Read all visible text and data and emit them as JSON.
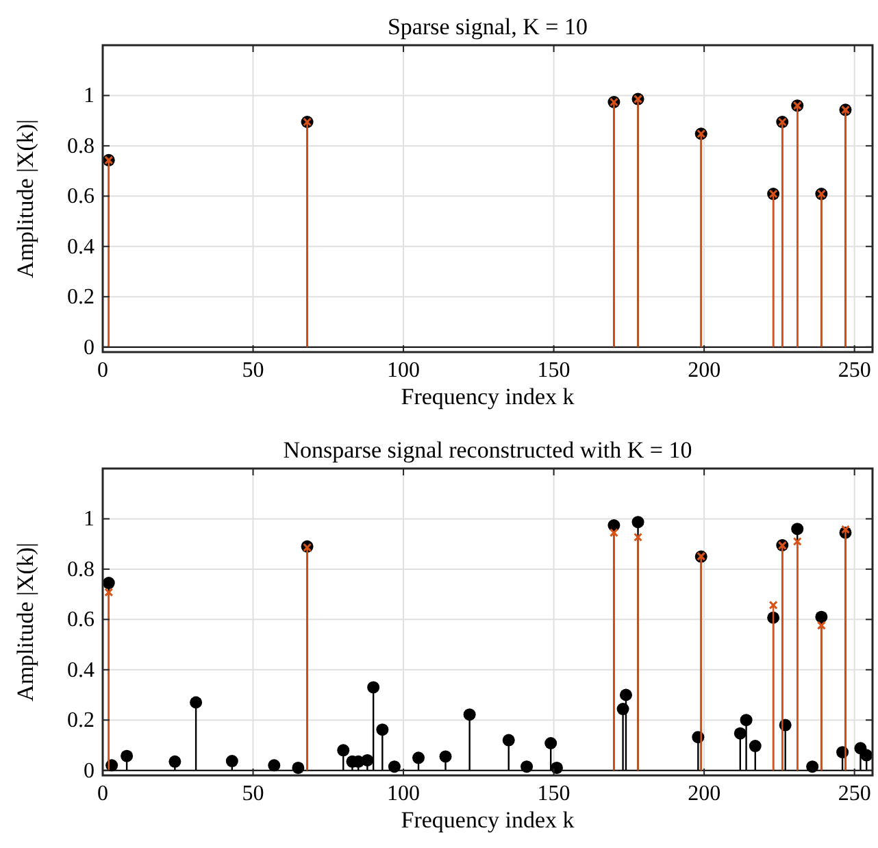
{
  "chart_data": [
    {
      "type": "lollipop",
      "title": "Sparse signal, K = 10",
      "xlabel": "Frequency index k",
      "ylabel": "Amplitude |X(k)|",
      "xlim": [
        0,
        256
      ],
      "ylim": [
        -0.02,
        1.2
      ],
      "xticks": [
        0,
        50,
        100,
        150,
        200,
        250
      ],
      "yticks": [
        0,
        0.2,
        0.4,
        0.6,
        0.8,
        1
      ],
      "grid": true,
      "series": [
        {
          "color": "#000000",
          "marker": "circle",
          "x": [
            2,
            68,
            170,
            178,
            199,
            223,
            226,
            231,
            239,
            247
          ],
          "values": [
            0.743,
            0.895,
            0.974,
            0.986,
            0.848,
            0.609,
            0.895,
            0.96,
            0.609,
            0.943
          ]
        },
        {
          "color": "#d95319",
          "marker": "cross",
          "x": [
            2,
            68,
            170,
            178,
            199,
            223,
            226,
            231,
            239,
            247
          ],
          "values": [
            0.743,
            0.895,
            0.974,
            0.986,
            0.848,
            0.609,
            0.895,
            0.96,
            0.609,
            0.943
          ]
        }
      ]
    },
    {
      "type": "lollipop",
      "title": "Nonsparse signal reconstructed with K = 10",
      "xlabel": "Frequency index k",
      "ylabel": "Amplitude |X(k)|",
      "xlim": [
        0,
        256
      ],
      "ylim": [
        -0.02,
        1.2
      ],
      "xticks": [
        0,
        50,
        100,
        150,
        200,
        250
      ],
      "yticks": [
        0,
        0.2,
        0.4,
        0.6,
        0.8,
        1
      ],
      "grid": true,
      "series": [
        {
          "color": "#000000",
          "marker": "circle",
          "x": [
            2,
            3,
            8,
            24,
            31,
            43,
            57,
            65,
            68,
            80,
            83,
            85,
            88,
            90,
            93,
            97,
            105,
            114,
            122,
            135,
            141,
            149,
            151,
            170,
            173,
            174,
            178,
            198,
            199,
            212,
            214,
            217,
            223,
            226,
            227,
            231,
            236,
            239,
            246,
            247,
            252,
            254
          ],
          "values": [
            0.745,
            0.02,
            0.057,
            0.035,
            0.27,
            0.037,
            0.02,
            0.01,
            0.89,
            0.08,
            0.035,
            0.035,
            0.04,
            0.33,
            0.162,
            0.015,
            0.05,
            0.055,
            0.222,
            0.12,
            0.015,
            0.108,
            0.01,
            0.974,
            0.244,
            0.3,
            0.987,
            0.132,
            0.85,
            0.147,
            0.2,
            0.097,
            0.607,
            0.895,
            0.18,
            0.96,
            0.015,
            0.61,
            0.072,
            0.945,
            0.088,
            0.06
          ]
        },
        {
          "color": "#d95319",
          "marker": "cross",
          "x": [
            2,
            68,
            170,
            178,
            199,
            223,
            226,
            231,
            239,
            247
          ],
          "values": [
            0.708,
            0.886,
            0.945,
            0.927,
            0.851,
            0.657,
            0.894,
            0.91,
            0.576,
            0.958
          ]
        }
      ]
    }
  ]
}
